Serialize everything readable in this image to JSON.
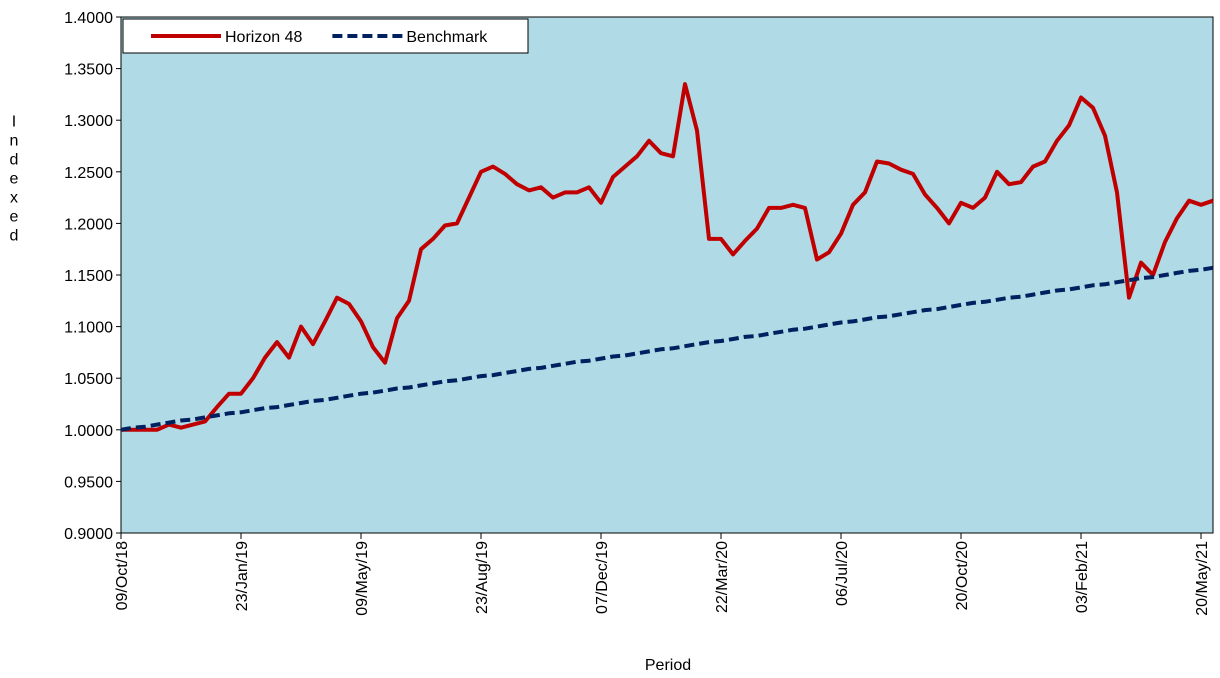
{
  "chart_data": {
    "type": "line",
    "x_label": "Period",
    "y_label": "Indexed",
    "categories": [
      "09/Oct/18",
      null,
      null,
      null,
      null,
      null,
      null,
      null,
      null,
      null,
      "23/Jan/19",
      null,
      null,
      null,
      null,
      null,
      null,
      null,
      null,
      null,
      "09/May/19",
      null,
      null,
      null,
      null,
      null,
      null,
      null,
      null,
      null,
      "23/Aug/19",
      null,
      null,
      null,
      null,
      null,
      null,
      null,
      null,
      null,
      "07/Dec/19",
      null,
      null,
      null,
      null,
      null,
      null,
      null,
      null,
      null,
      "22/Mar/20",
      null,
      null,
      null,
      null,
      null,
      null,
      null,
      null,
      null,
      "06/Jul/20",
      null,
      null,
      null,
      null,
      null,
      null,
      null,
      null,
      null,
      "20/Oct/20",
      null,
      null,
      null,
      null,
      null,
      null,
      null,
      null,
      null,
      "03/Feb/21",
      null,
      null,
      null,
      null,
      null,
      null,
      null,
      null,
      null,
      "20/May/21",
      null
    ],
    "series": [
      {
        "name": "Horizon 48",
        "color": "#c00000",
        "dash": false,
        "values": [
          1.0,
          1.0,
          1.0,
          1.0,
          1.005,
          1.002,
          1.005,
          1.008,
          1.022,
          1.035,
          1.035,
          1.05,
          1.07,
          1.085,
          1.07,
          1.1,
          1.083,
          1.105,
          1.128,
          1.122,
          1.105,
          1.08,
          1.065,
          1.108,
          1.125,
          1.175,
          1.185,
          1.198,
          1.2,
          1.225,
          1.25,
          1.255,
          1.248,
          1.238,
          1.232,
          1.235,
          1.225,
          1.23,
          1.23,
          1.235,
          1.22,
          1.245,
          1.255,
          1.265,
          1.28,
          1.268,
          1.265,
          1.335,
          1.29,
          1.185,
          1.185,
          1.17,
          1.183,
          1.195,
          1.215,
          1.215,
          1.218,
          1.215,
          1.165,
          1.172,
          1.19,
          1.218,
          1.23,
          1.26,
          1.258,
          1.252,
          1.248,
          1.228,
          1.215,
          1.2,
          1.22,
          1.215,
          1.225,
          1.25,
          1.238,
          1.24,
          1.255,
          1.26,
          1.28,
          1.295,
          1.322,
          1.312,
          1.285,
          1.23,
          1.128,
          1.162,
          1.15,
          1.182,
          1.205,
          1.222,
          1.218,
          1.222
        ]
      },
      {
        "name": "Benchmark",
        "color": "#002060",
        "dash": true,
        "values": [
          1.0,
          1.002,
          1.003,
          1.005,
          1.007,
          1.009,
          1.01,
          1.012,
          1.014,
          1.016,
          1.017,
          1.019,
          1.021,
          1.022,
          1.024,
          1.026,
          1.028,
          1.029,
          1.031,
          1.033,
          1.035,
          1.036,
          1.038,
          1.04,
          1.041,
          1.043,
          1.045,
          1.047,
          1.048,
          1.05,
          1.052,
          1.053,
          1.055,
          1.057,
          1.059,
          1.06,
          1.062,
          1.064,
          1.066,
          1.067,
          1.069,
          1.071,
          1.072,
          1.074,
          1.076,
          1.078,
          1.079,
          1.081,
          1.083,
          1.085,
          1.086,
          1.088,
          1.09,
          1.091,
          1.093,
          1.095,
          1.097,
          1.098,
          1.1,
          1.102,
          1.104,
          1.105,
          1.107,
          1.109,
          1.11,
          1.112,
          1.114,
          1.116,
          1.117,
          1.119,
          1.121,
          1.123,
          1.124,
          1.126,
          1.128,
          1.129,
          1.131,
          1.133,
          1.135,
          1.136,
          1.138,
          1.14,
          1.141,
          1.143,
          1.145,
          1.147,
          1.148,
          1.15,
          1.152,
          1.154,
          1.155,
          1.157
        ]
      }
    ],
    "ylim": [
      0.9,
      1.4
    ],
    "yticks": [
      {
        "value": 0.9,
        "label": "0.9000"
      },
      {
        "value": 0.95,
        "label": "0.9500"
      },
      {
        "value": 1.0,
        "label": "1.0000"
      },
      {
        "value": 1.05,
        "label": "1.0500"
      },
      {
        "value": 1.1,
        "label": "1.1000"
      },
      {
        "value": 1.15,
        "label": "1.1500"
      },
      {
        "value": 1.2,
        "label": "1.2000"
      },
      {
        "value": 1.25,
        "label": "1.2500"
      },
      {
        "value": 1.3,
        "label": "1.3000"
      },
      {
        "value": 1.35,
        "label": "1.3500"
      },
      {
        "value": 1.4,
        "label": "1.4000"
      }
    ],
    "background": "#b0dbe6",
    "legend": "top-left"
  }
}
